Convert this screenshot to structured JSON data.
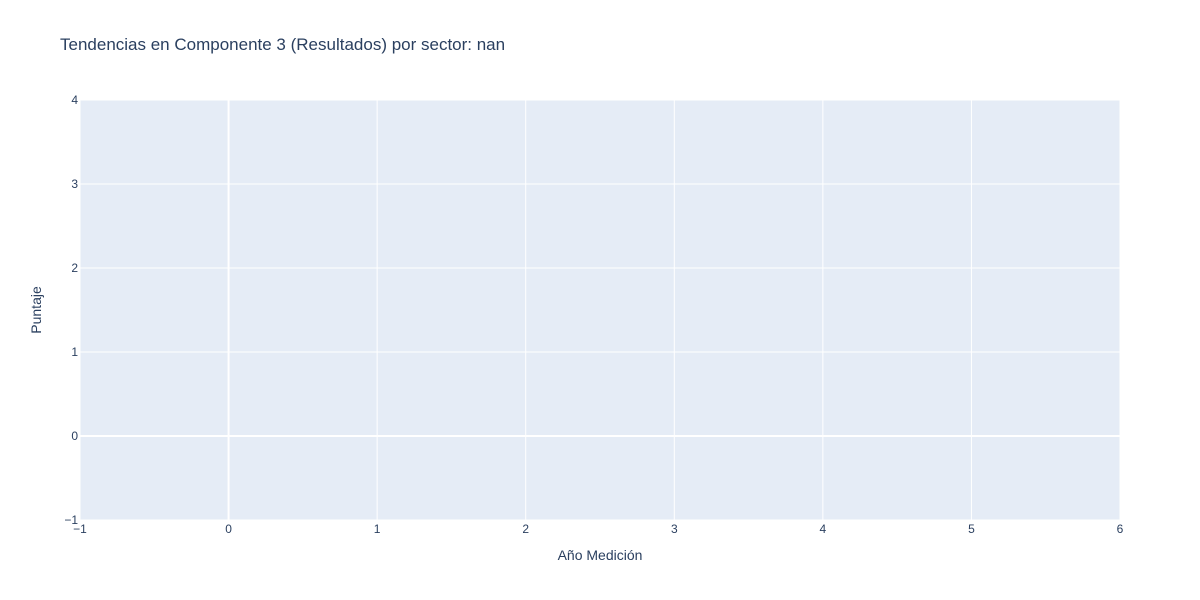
{
  "chart_data": {
    "type": "line",
    "title": "Tendencias en Componente 3 (Resultados) por sector: nan",
    "xlabel": "Año Medición",
    "ylabel": "Puntaje",
    "xlim": [
      -1,
      6
    ],
    "ylim": [
      -1,
      4
    ],
    "x_ticks": [
      "−1",
      "0",
      "1",
      "2",
      "3",
      "4",
      "5",
      "6"
    ],
    "y_ticks": [
      "−1",
      "0",
      "1",
      "2",
      "3",
      "4"
    ],
    "x_tick_values": [
      -1,
      0,
      1,
      2,
      3,
      4,
      5,
      6
    ],
    "y_tick_values": [
      -1,
      0,
      1,
      2,
      3,
      4
    ],
    "series": [],
    "grid": true,
    "legend": "none",
    "colors": {
      "plot_background": "#e5ecf6",
      "gridline": "#ffffff",
      "text": "#2a3f5f"
    }
  }
}
